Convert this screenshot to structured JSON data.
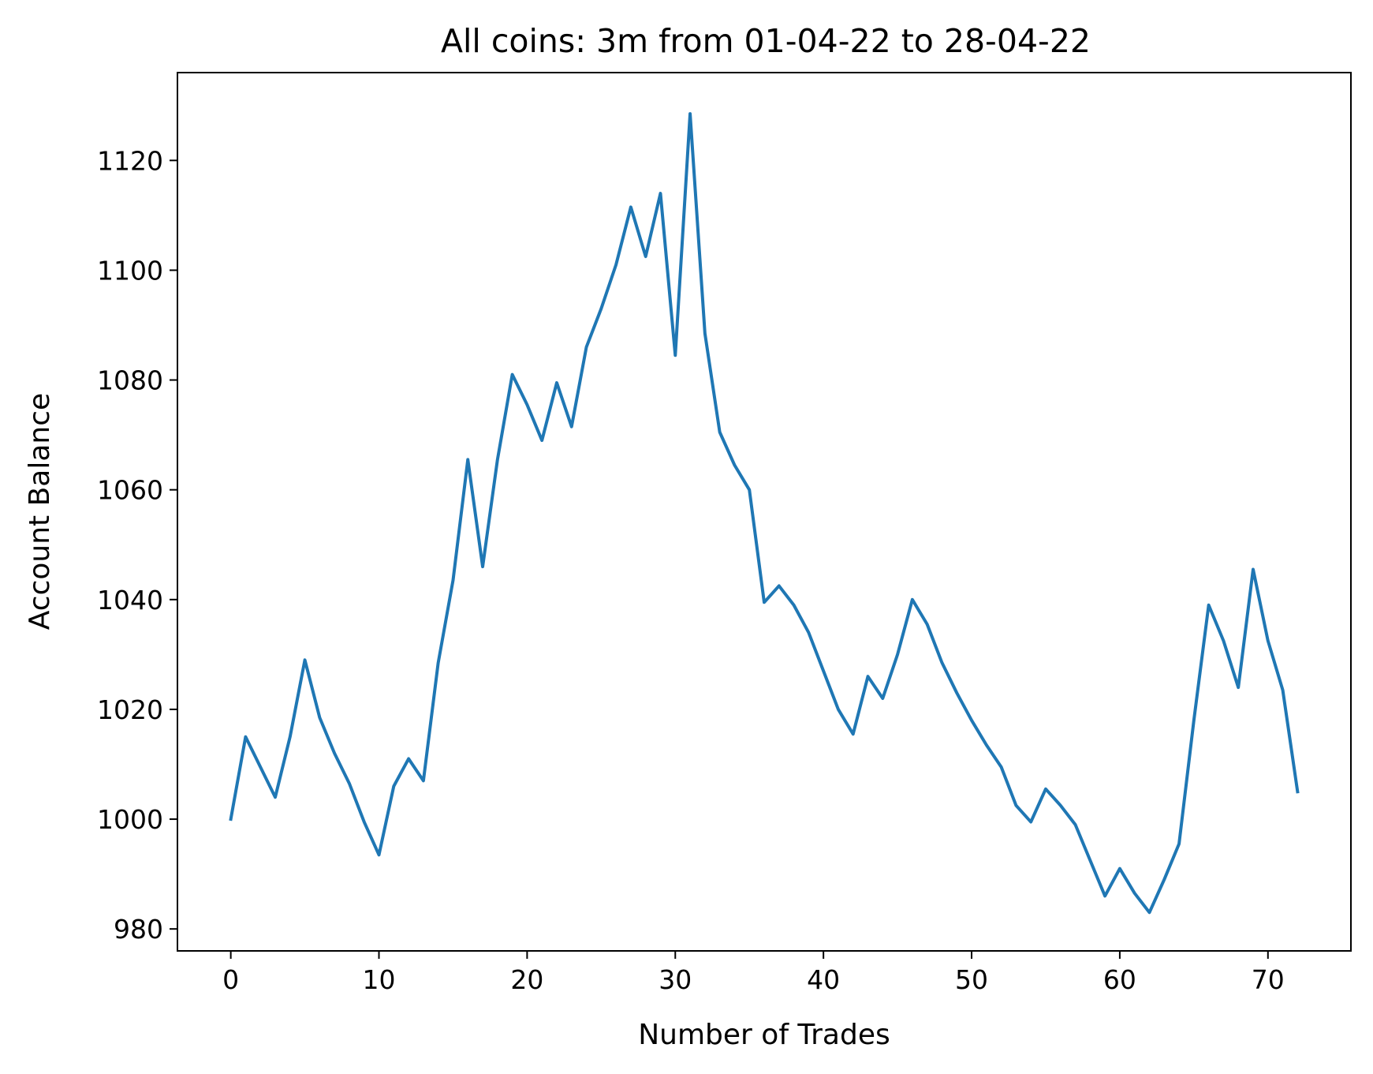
{
  "chart_data": {
    "type": "line",
    "title": "All coins: 3m from 01-04-22 to 28-04-22",
    "xlabel": "Number of Trades",
    "ylabel": "Account Balance",
    "xlim": [
      -3.6,
      75.6
    ],
    "ylim": [
      976,
      1136
    ],
    "xticks": [
      0,
      10,
      20,
      30,
      40,
      50,
      60,
      70
    ],
    "yticks": [
      980,
      1000,
      1020,
      1040,
      1060,
      1080,
      1100,
      1120
    ],
    "grid": false,
    "color": "#1f77b4",
    "series": [
      {
        "x": [
          0,
          1,
          2,
          3,
          4,
          5,
          6,
          7,
          8,
          9,
          10,
          11,
          12,
          13,
          14,
          15,
          16,
          17,
          18,
          19,
          20,
          21,
          22,
          23,
          24,
          25,
          26,
          27,
          28,
          29,
          30,
          31,
          32,
          33,
          34,
          35,
          36,
          37,
          38,
          39,
          40,
          41,
          42,
          43,
          44,
          45,
          46,
          47,
          48,
          49,
          50,
          51,
          52,
          53,
          54,
          55,
          56,
          57,
          58,
          59,
          60,
          61,
          62,
          63,
          64,
          65,
          66,
          67,
          68,
          69,
          70,
          71,
          72
        ],
        "values": [
          1000,
          1015,
          1009.5,
          1004,
          1015,
          1029,
          1018.5,
          1012,
          1006.5,
          999.5,
          993.5,
          1006,
          1011,
          1007,
          1028.5,
          1043.5,
          1065.5,
          1046,
          1065.5,
          1081,
          1075.5,
          1069,
          1079.5,
          1071.5,
          1086,
          1093,
          1101,
          1111.5,
          1102.5,
          1114,
          1084.5,
          1128.5,
          1088.5,
          1070.5,
          1064.5,
          1060,
          1039.5,
          1042.5,
          1039,
          1034,
          1027,
          1020,
          1015.5,
          1026,
          1022,
          1030,
          1040,
          1035.5,
          1028.5,
          1023,
          1018,
          1013.5,
          1009.5,
          1002.5,
          999.5,
          1005.5,
          1002.5,
          999,
          992.5,
          986,
          991,
          986.5,
          983,
          989,
          995.5,
          1018,
          1039,
          1032.5,
          1024,
          1045.5,
          1032.5,
          1023.5,
          1005
        ]
      }
    ]
  }
}
